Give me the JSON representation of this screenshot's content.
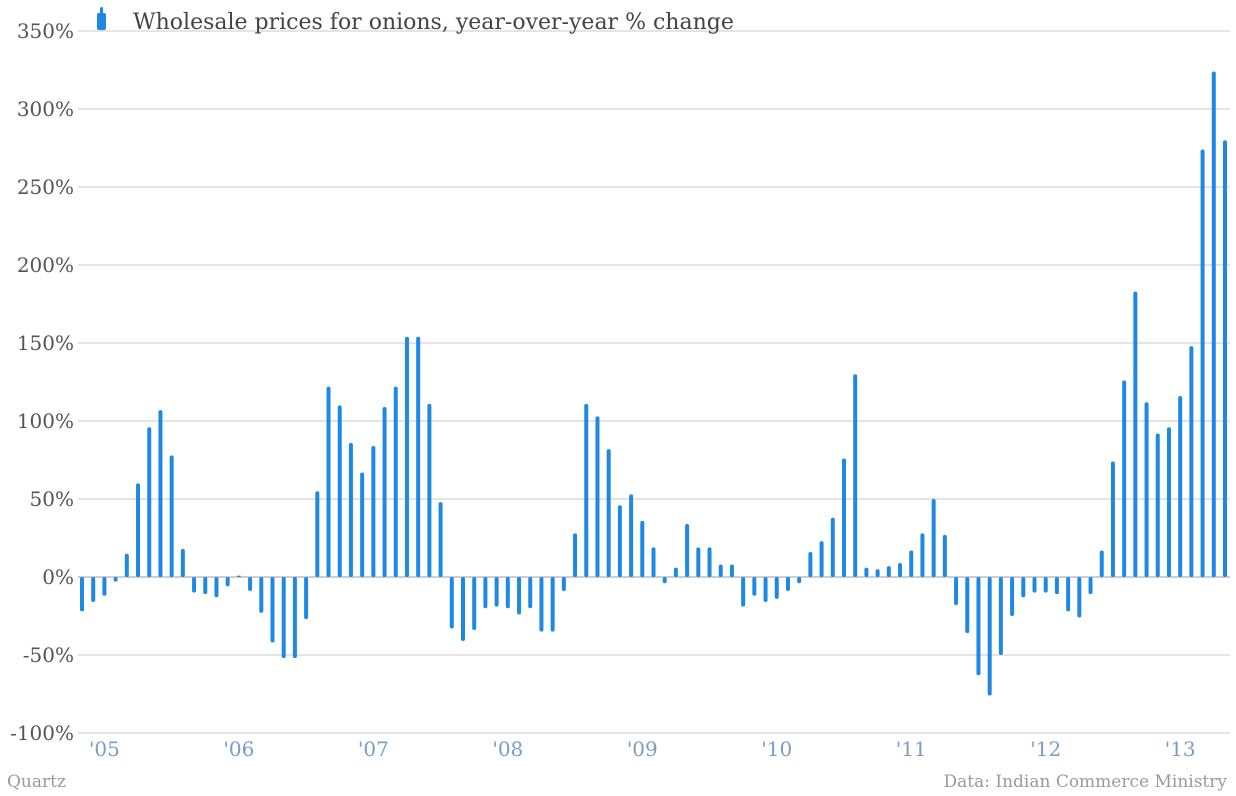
{
  "chart_data": {
    "type": "bar",
    "title": "",
    "xlabel": "",
    "ylabel": "",
    "ylim": [
      -100,
      350
    ],
    "yticks": [
      -100,
      -50,
      0,
      50,
      100,
      150,
      200,
      250,
      300,
      350
    ],
    "ytick_labels": [
      "-100%",
      "-50%",
      "0%",
      "50%",
      "100%",
      "150%",
      "200%",
      "250%",
      "300%",
      "350%"
    ],
    "x_tick_labels": [
      "'05",
      "'06",
      "'07",
      "'08",
      "'09",
      "'10",
      "'11",
      "'12",
      "'13"
    ],
    "grid": true,
    "legend_position": "top-left",
    "color": "#1e88e5",
    "series": [
      {
        "name": "Wholesale prices for onions, year-over-year % change",
        "values": [
          -22,
          -16,
          -12,
          -3,
          15,
          60,
          96,
          107,
          78,
          18,
          -10,
          -11,
          -13,
          -6,
          1,
          -9,
          -23,
          -42,
          -52,
          -52,
          -27,
          55,
          122,
          110,
          86,
          67,
          84,
          109,
          122,
          154,
          154,
          111,
          48,
          -33,
          -41,
          -34,
          -20,
          -19,
          -20,
          -24,
          -20,
          -35,
          -35,
          -9,
          28,
          111,
          103,
          82,
          46,
          53,
          36,
          19,
          -4,
          6,
          34,
          19,
          19,
          8,
          8,
          -19,
          -12,
          -16,
          -14,
          -9,
          -4,
          16,
          23,
          38,
          76,
          130,
          6,
          5,
          7,
          9,
          17,
          28,
          50,
          27,
          -18,
          -36,
          -63,
          -76,
          -50,
          -25,
          -13,
          -10,
          -10,
          -11,
          -22,
          -26,
          -11,
          17,
          74,
          126,
          183,
          112,
          92,
          96,
          116,
          148,
          274,
          324,
          280
        ]
      }
    ]
  },
  "footer": {
    "source_left": "Quartz",
    "source_right": "Data: Indian Commerce Ministry"
  }
}
